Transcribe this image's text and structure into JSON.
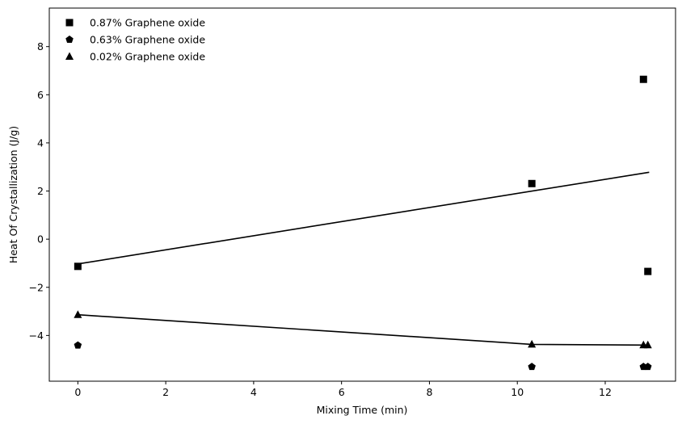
{
  "chart_data": {
    "type": "scatter",
    "xlabel": "Mixing Time (min)",
    "ylabel": "Heat Of Crystallization (J/g)",
    "xlim": [
      -0.65,
      13.6
    ],
    "ylim": [
      -5.9,
      9.6
    ],
    "xticks": [
      0,
      2,
      4,
      6,
      8,
      10,
      12
    ],
    "yticks": [
      -4,
      -2,
      0,
      2,
      4,
      6,
      8
    ],
    "grid": false,
    "legend_position": "top-left",
    "color": "#000000",
    "series": [
      {
        "name": "0.87% Graphene oxide",
        "marker": "square",
        "x": [
          0,
          10.33,
          12.87,
          12.97
        ],
        "y": [
          -1.13,
          2.31,
          6.64,
          -1.34
        ],
        "fit_line": {
          "x": [
            0,
            13.0
          ],
          "y": [
            -1.03,
            2.78
          ]
        }
      },
      {
        "name": "0.63% Graphene oxide",
        "marker": "pentagon",
        "x": [
          0,
          10.33,
          12.87,
          12.97
        ],
        "y": [
          -4.41,
          -5.3,
          -5.3,
          -5.3
        ],
        "fit_line": null
      },
      {
        "name": "0.02% Graphene oxide",
        "marker": "triangle",
        "x": [
          0,
          10.33,
          12.87,
          12.97
        ],
        "y": [
          -3.14,
          -4.37,
          -4.4,
          -4.4
        ],
        "fit_line": {
          "x": [
            0,
            10.33,
            13.0
          ],
          "y": [
            -3.14,
            -4.37,
            -4.4
          ]
        }
      }
    ]
  }
}
